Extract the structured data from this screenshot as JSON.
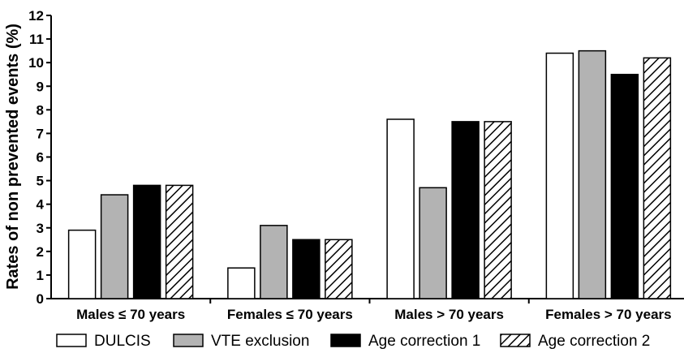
{
  "chart_data": {
    "type": "bar",
    "title": "",
    "xlabel": "",
    "ylabel": "Rates of non prevented events (%)",
    "ylim": [
      0,
      12
    ],
    "yticks": [
      0,
      1,
      2,
      3,
      4,
      5,
      6,
      7,
      8,
      9,
      10,
      11,
      12
    ],
    "categories": [
      "Males ≤ 70 years",
      "Females ≤ 70 years",
      "Males > 70 years",
      "Females > 70 years"
    ],
    "series": [
      {
        "name": "DULCIS",
        "values": [
          2.9,
          1.3,
          7.6,
          10.4
        ],
        "fill": "white"
      },
      {
        "name": "VTE exclusion",
        "values": [
          4.4,
          3.1,
          4.7,
          10.5
        ],
        "fill": "gray"
      },
      {
        "name": "Age correction 1",
        "values": [
          4.8,
          2.5,
          7.5,
          9.5
        ],
        "fill": "black"
      },
      {
        "name": "Age correction 2",
        "values": [
          4.8,
          2.5,
          7.5,
          10.2
        ],
        "fill": "hatched"
      }
    ],
    "grid": false,
    "legend_position": "bottom"
  },
  "colors": {
    "white": "#ffffff",
    "gray": "#b3b3b3",
    "black": "#000000",
    "hatch": "#000000",
    "axis": "#000000"
  }
}
